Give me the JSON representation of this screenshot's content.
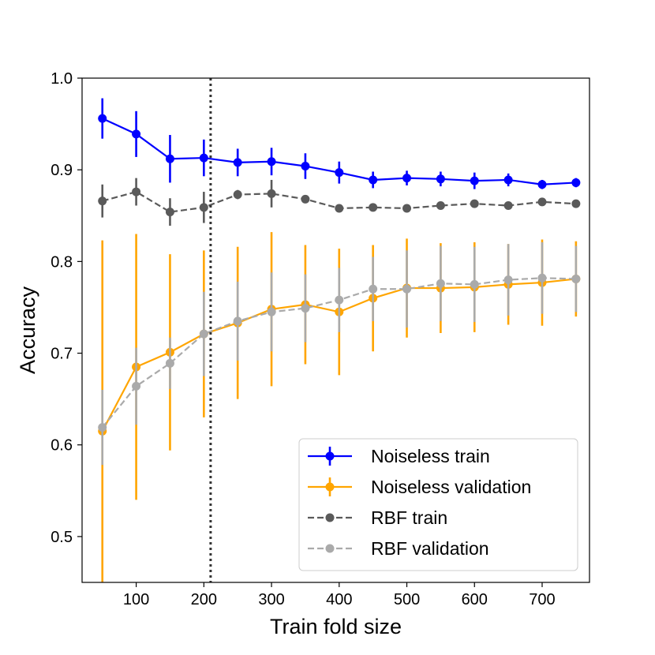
{
  "chart_data": {
    "type": "line",
    "title": "",
    "xlabel": "Train fold size",
    "ylabel": "Accuracy",
    "xlim": [
      20,
      770
    ],
    "ylim": [
      0.45,
      1.0
    ],
    "xticks": [
      100,
      200,
      300,
      400,
      500,
      600,
      700
    ],
    "yticks": [
      0.5,
      0.6,
      0.7,
      0.8,
      0.9,
      1.0
    ],
    "xtick_labels": [
      "100",
      "200",
      "300",
      "400",
      "500",
      "600",
      "700"
    ],
    "ytick_labels": [
      "0.5",
      "0.6",
      "0.7",
      "0.8",
      "0.9",
      "1.0"
    ],
    "vline_x": 210,
    "x": [
      50,
      100,
      150,
      200,
      250,
      300,
      350,
      400,
      450,
      500,
      550,
      600,
      650,
      700,
      750
    ],
    "legend_position": "lower-right",
    "series": [
      {
        "name": "Noiseless train",
        "color": "#0000ff",
        "dashed": false,
        "values": [
          0.956,
          0.939,
          0.912,
          0.913,
          0.908,
          0.909,
          0.904,
          0.897,
          0.889,
          0.891,
          0.89,
          0.888,
          0.889,
          0.884,
          0.886
        ],
        "errors": [
          0.022,
          0.025,
          0.026,
          0.02,
          0.015,
          0.015,
          0.014,
          0.012,
          0.009,
          0.008,
          0.008,
          0.009,
          0.007,
          0.005,
          0.005
        ]
      },
      {
        "name": "Noiseless validation",
        "color": "#ffa500",
        "dashed": false,
        "values": [
          0.615,
          0.685,
          0.701,
          0.721,
          0.733,
          0.748,
          0.753,
          0.745,
          0.76,
          0.771,
          0.771,
          0.772,
          0.775,
          0.777,
          0.781
        ],
        "errors": [
          0.208,
          0.145,
          0.107,
          0.091,
          0.083,
          0.084,
          0.065,
          0.069,
          0.058,
          0.054,
          0.049,
          0.049,
          0.044,
          0.047,
          0.041
        ]
      },
      {
        "name": "RBF train",
        "color": "#5a5a5a",
        "dashed": true,
        "values": [
          0.866,
          0.876,
          0.854,
          0.859,
          0.873,
          0.874,
          0.868,
          0.858,
          0.859,
          0.858,
          0.861,
          0.863,
          0.861,
          0.865,
          0.863
        ],
        "errors": [
          0.018,
          0.015,
          0.015,
          0.017,
          0.005,
          0.015,
          0.003,
          0.003,
          0.003,
          0.004,
          0.003,
          0.003,
          0.003,
          0.004,
          0.003
        ]
      },
      {
        "name": "RBF validation",
        "color": "#aaaaaa",
        "dashed": true,
        "values": [
          0.619,
          0.664,
          0.689,
          0.721,
          0.735,
          0.745,
          0.749,
          0.758,
          0.77,
          0.77,
          0.776,
          0.775,
          0.78,
          0.782,
          0.781
        ],
        "errors": [
          0.041,
          0.042,
          0.028,
          0.046,
          0.043,
          0.043,
          0.037,
          0.035,
          0.035,
          0.042,
          0.041,
          0.041,
          0.039,
          0.039,
          0.036
        ]
      }
    ]
  }
}
